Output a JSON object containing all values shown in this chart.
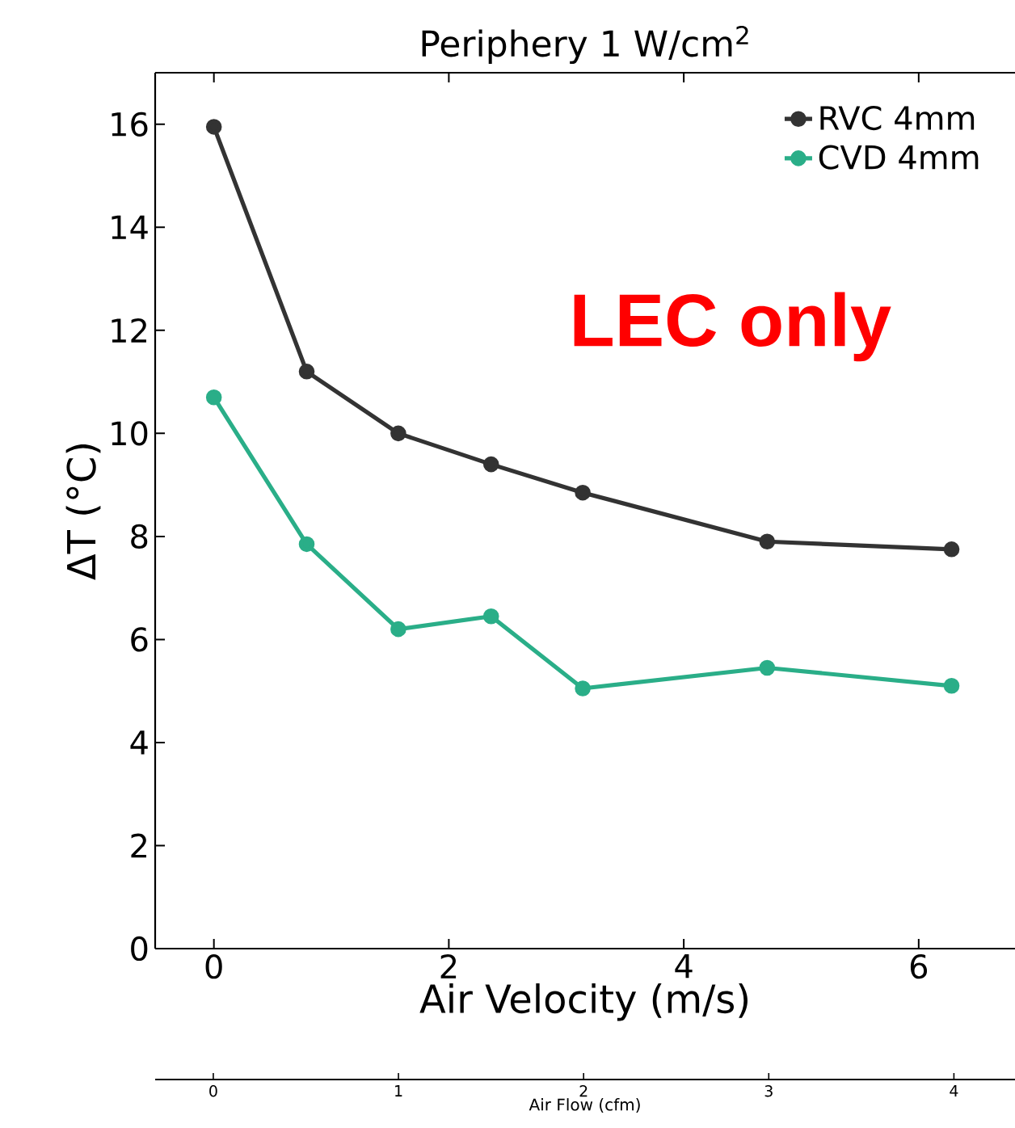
{
  "chart_data": {
    "type": "line",
    "title": "Periphery 1 W/cm$^{2}$",
    "xlabel": "Air Velocity (m/s)",
    "ylabel": "ΔT (°C)",
    "x2label": "Air Flow (cfm)",
    "x": [
      0,
      0.79,
      1.57,
      2.36,
      3.14,
      4.71,
      6.28
    ],
    "series": [
      {
        "name": "RVC 4mm",
        "color": "#333333",
        "values": [
          15.95,
          11.2,
          10.0,
          9.4,
          8.85,
          7.9,
          7.75
        ]
      },
      {
        "name": "CVD 4mm",
        "color": "#2aae88",
        "values": [
          10.7,
          7.85,
          6.2,
          6.45,
          5.05,
          5.45,
          5.1
        ]
      }
    ],
    "xlim": [
      -0.5,
      6.82
    ],
    "xticks": [
      0,
      2,
      4,
      6
    ],
    "ylim": [
      0,
      17
    ],
    "yticks": [
      0,
      2,
      4,
      6,
      8,
      10,
      12,
      14,
      16
    ],
    "x2lim": [
      -0.314,
      4.33
    ],
    "x2ticks": [
      0,
      1,
      2,
      3,
      4
    ],
    "annotations": [
      "LEC only"
    ],
    "legend": "top right",
    "marker": "circle",
    "line_style": "solid",
    "grid": false
  }
}
